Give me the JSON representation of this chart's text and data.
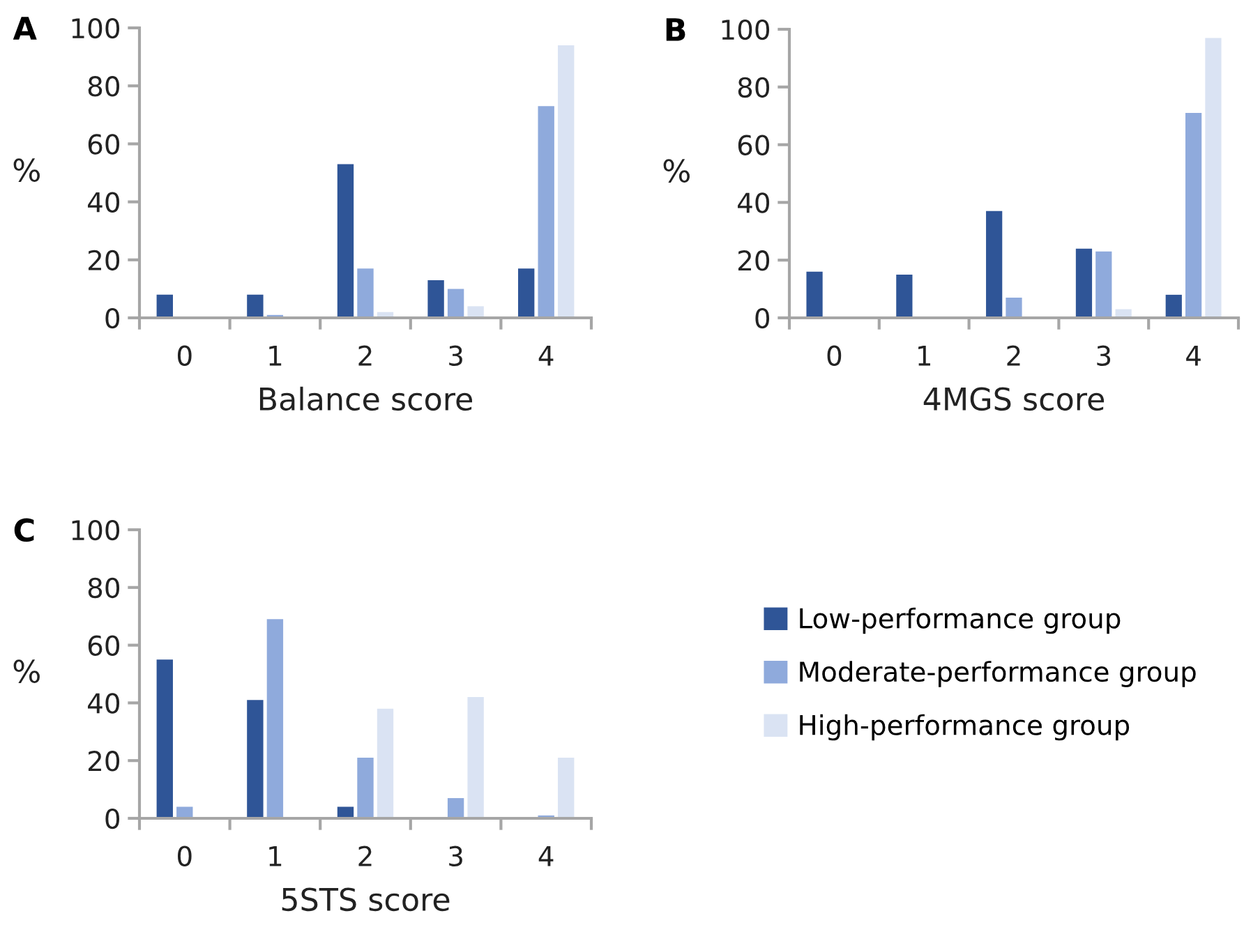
{
  "chart_data": [
    {
      "type": "bar",
      "title": "A",
      "xlabel": "Balance score",
      "ylabel": "%",
      "categories": [
        "0",
        "1",
        "2",
        "3",
        "4"
      ],
      "ylim": [
        0,
        100
      ],
      "yticks": [
        0,
        20,
        40,
        60,
        80,
        100
      ],
      "grid": false,
      "legend": false,
      "series": [
        {
          "color": "#2f5597",
          "values": [
            8,
            8,
            53,
            13,
            17
          ]
        },
        {
          "color": "#8faadc",
          "values": [
            0,
            1,
            17,
            10,
            73
          ]
        },
        {
          "color": "#dae3f3",
          "values": [
            0,
            0,
            2,
            4,
            94
          ]
        }
      ]
    },
    {
      "type": "bar",
      "title": "B",
      "xlabel": "4MGS score",
      "ylabel": "%",
      "categories": [
        "0",
        "1",
        "2",
        "3",
        "4"
      ],
      "ylim": [
        0,
        100
      ],
      "yticks": [
        0,
        20,
        40,
        60,
        80,
        100
      ],
      "grid": false,
      "legend": false,
      "series": [
        {
          "color": "#2f5597",
          "values": [
            16,
            15,
            37,
            24,
            8
          ]
        },
        {
          "color": "#8faadc",
          "values": [
            0,
            0,
            7,
            23,
            71
          ]
        },
        {
          "color": "#dae3f3",
          "values": [
            0,
            0,
            0,
            3,
            97
          ]
        }
      ]
    },
    {
      "type": "bar",
      "title": "C",
      "xlabel": "5STS score",
      "ylabel": "%",
      "categories": [
        "0",
        "1",
        "2",
        "3",
        "4"
      ],
      "ylim": [
        0,
        100
      ],
      "yticks": [
        0,
        20,
        40,
        60,
        80,
        100
      ],
      "grid": false,
      "legend": "right",
      "series": [
        {
          "name": "Low-performance group",
          "color": "#2f5597",
          "values": [
            55,
            41,
            4,
            0,
            0
          ]
        },
        {
          "name": "Moderate-performance group",
          "color": "#8faadc",
          "values": [
            4,
            69,
            21,
            7,
            1
          ]
        },
        {
          "name": "High-performance group",
          "color": "#dae3f3",
          "values": [
            0,
            0,
            38,
            42,
            21
          ]
        }
      ]
    }
  ]
}
